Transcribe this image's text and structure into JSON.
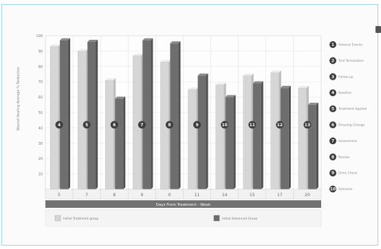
{
  "chart_data": {
    "type": "bar",
    "categories": [
      "5",
      "7",
      "8",
      "9",
      "0",
      "11",
      "14",
      "15",
      "17",
      "20"
    ],
    "series": [
      {
        "name": "Initial Treatment group",
        "values": [
          93,
          90,
          71,
          87,
          83,
          65,
          68,
          74,
          76,
          66
        ],
        "color": "#d6d6d6"
      },
      {
        "name": "Initial Advanced Group",
        "values": [
          97,
          96,
          59,
          97,
          95,
          74,
          60,
          69,
          66,
          55
        ],
        "color": "#6e6e6e"
      }
    ],
    "ylim": [
      0,
      100
    ],
    "yticks": [
      10,
      20,
      30,
      40,
      50,
      60,
      70,
      80,
      90,
      100
    ],
    "ytick_labels": [
      "10",
      "20",
      "30",
      "40",
      "50",
      "60",
      "70",
      "80",
      "90",
      "100"
    ],
    "ylabel": "Wound Healing Average % Reduction",
    "xlabel": "Days From Treatment - Week",
    "markers": [
      "4",
      "5",
      "6",
      "7",
      "8",
      "9",
      "10",
      "11",
      "12",
      "13"
    ],
    "side_legend": {
      "markers": [
        "1",
        "2",
        "3",
        "4",
        "5",
        "6",
        "7",
        "8",
        "9",
        "10"
      ],
      "labels": [
        "Adverse Events",
        "Trial Termination",
        "Follow-up",
        "Baseline",
        "Treatment Applied",
        "Dressing Change",
        "Assessment",
        "Review",
        "Clinic Check",
        "Outcome"
      ]
    },
    "grid": true
  }
}
